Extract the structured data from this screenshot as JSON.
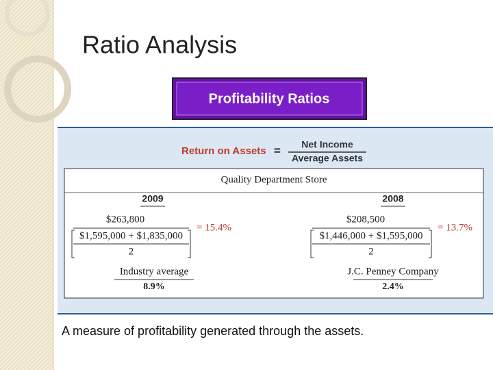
{
  "title": "Ratio Analysis",
  "button": "Profitability Ratios",
  "formula": {
    "name": "Return on Assets",
    "equals": "=",
    "numerator": "Net Income",
    "denominator": "Average Assets"
  },
  "example": {
    "company": "Quality Department Store",
    "years": [
      {
        "year": "2009",
        "numerator": "$263,800",
        "denominator": "$1,595,000 + $1,835,000",
        "divisor": "2",
        "result": "= 15.4%",
        "comparison_label": "Industry average",
        "comparison_value": "8.9%"
      },
      {
        "year": "2008",
        "numerator": "$208,500",
        "denominator": "$1,446,000 + $1,595,000",
        "divisor": "2",
        "result": "= 13.7%",
        "comparison_label": "J.C. Penney Company",
        "comparison_value": "2.4%"
      }
    ]
  },
  "caption": "A measure of profitability generated through the assets."
}
